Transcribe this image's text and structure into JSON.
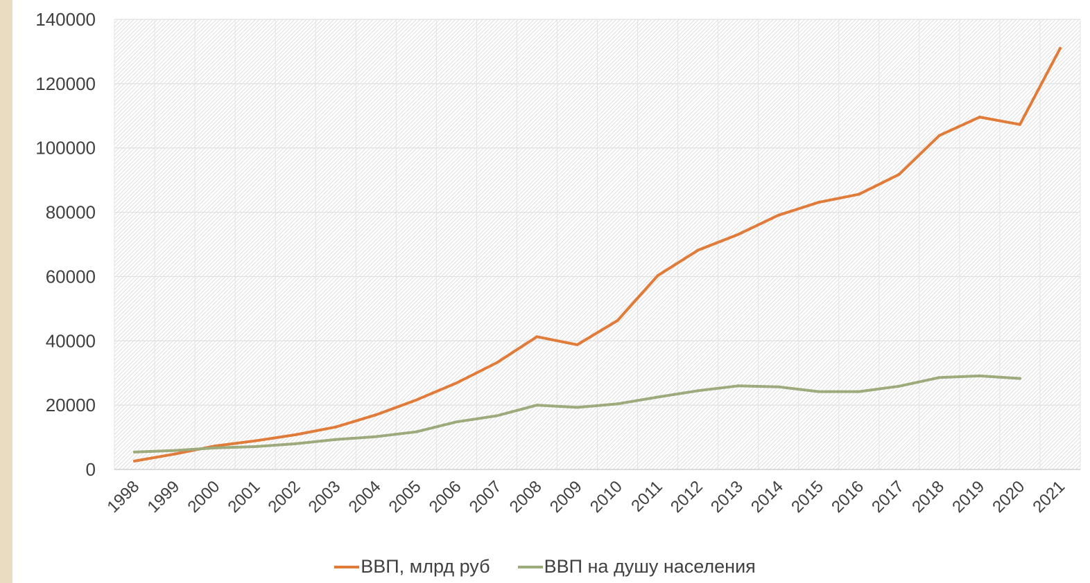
{
  "chart_data": {
    "type": "line",
    "x": [
      "1998",
      "1999",
      "2000",
      "2001",
      "2002",
      "2003",
      "2004",
      "2005",
      "2006",
      "2007",
      "2008",
      "2009",
      "2010",
      "2011",
      "2012",
      "2013",
      "2014",
      "2015",
      "2016",
      "2017",
      "2018",
      "2019",
      "2020",
      "2021"
    ],
    "ylim": [
      0,
      140000
    ],
    "yticks": [
      0,
      20000,
      40000,
      60000,
      80000,
      100000,
      120000,
      140000
    ],
    "grid": true,
    "legend_position": "bottom",
    "series": [
      {
        "name": "ВВП, млрд руб",
        "color": "#e07b39",
        "values": [
          2600,
          4800,
          7300,
          8900,
          10800,
          13200,
          17000,
          21600,
          26900,
          33200,
          41300,
          38800,
          46300,
          60300,
          68200,
          73100,
          79100,
          83100,
          85600,
          91800,
          103900,
          109600,
          107300,
          131000
        ]
      },
      {
        "name": "ВВП на душу населения",
        "color": "#9caa7c",
        "values": [
          5400,
          5900,
          6700,
          7100,
          8000,
          9300,
          10200,
          11700,
          14800,
          16700,
          20000,
          19300,
          20400,
          22500,
          24500,
          26000,
          25700,
          24200,
          24200,
          25900,
          28600,
          29100,
          28300,
          null
        ]
      }
    ]
  }
}
